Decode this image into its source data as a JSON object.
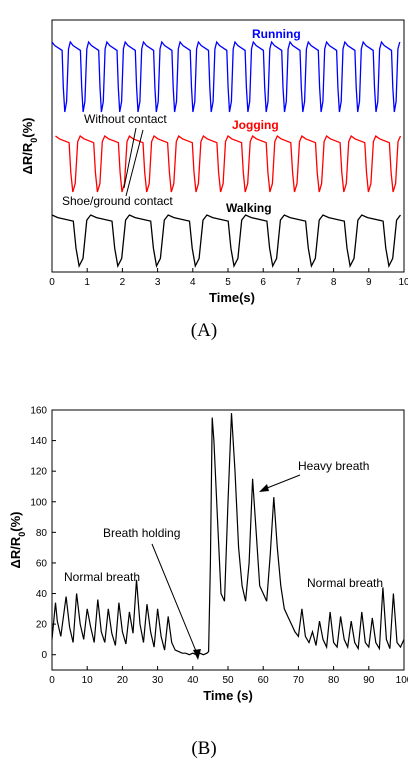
{
  "panel_labels": {
    "a": "(A)",
    "b": "(B)"
  },
  "chart_data": [
    {
      "type": "line",
      "title": "",
      "xlabel": "Time(s)",
      "ylabel": "ΔR/R0(%)",
      "xlim": [
        0,
        10
      ],
      "xticks": [
        "0",
        "1",
        "2",
        "3",
        "4",
        "5",
        "6",
        "7",
        "8",
        "9",
        "10"
      ],
      "yticks": [],
      "series": [
        {
          "name": "Running",
          "color": "#0000ff",
          "period": 0.52,
          "start": 0.0,
          "cycles": 19
        },
        {
          "name": "Jogging",
          "color": "#ff0000",
          "period": 0.7,
          "start": 0.1,
          "cycles": 15
        },
        {
          "name": "Walking",
          "color": "#000000",
          "period": 1.1,
          "start": 0.0,
          "cycles": 10
        }
      ],
      "annotations": [
        "Without contact",
        "Shoe/ground contact"
      ]
    },
    {
      "type": "line",
      "title": "",
      "xlabel": "Time (s)",
      "ylabel": "ΔR/R0(%)",
      "xlim": [
        0,
        100
      ],
      "ylim": [
        -10,
        160
      ],
      "xticks": [
        "0",
        "10",
        "20",
        "30",
        "40",
        "50",
        "60",
        "70",
        "80",
        "90",
        "100"
      ],
      "yticks": [
        "0",
        "20",
        "40",
        "60",
        "80",
        "100",
        "120",
        "140",
        "160"
      ],
      "series": [
        {
          "name": "",
          "color": "#000000",
          "points": [
            [
              0,
              10
            ],
            [
              1,
              34
            ],
            [
              1.5,
              22
            ],
            [
              2.5,
              12
            ],
            [
              4,
              38
            ],
            [
              5,
              18
            ],
            [
              6,
              8
            ],
            [
              7,
              40
            ],
            [
              8,
              20
            ],
            [
              9,
              10
            ],
            [
              10,
              30
            ],
            [
              11,
              18
            ],
            [
              12,
              8
            ],
            [
              13,
              36
            ],
            [
              14,
              15
            ],
            [
              15,
              8
            ],
            [
              16,
              30
            ],
            [
              17,
              14
            ],
            [
              18,
              6
            ],
            [
              19,
              34
            ],
            [
              20,
              15
            ],
            [
              21,
              7
            ],
            [
              22,
              28
            ],
            [
              23,
              14
            ],
            [
              24,
              49
            ],
            [
              25,
              20
            ],
            [
              26,
              8
            ],
            [
              27,
              33
            ],
            [
              28,
              15
            ],
            [
              29,
              5
            ],
            [
              30,
              30
            ],
            [
              31,
              12
            ],
            [
              32,
              3
            ],
            [
              33,
              25
            ],
            [
              34,
              8
            ],
            [
              35,
              3
            ],
            [
              36,
              2
            ],
            [
              37,
              1
            ],
            [
              38,
              1
            ],
            [
              39,
              0
            ],
            [
              40,
              1
            ],
            [
              41,
              0
            ],
            [
              42,
              1
            ],
            [
              43,
              0
            ],
            [
              44,
              1
            ],
            [
              44.5,
              2
            ],
            [
              45,
              60
            ],
            [
              45.5,
              155
            ],
            [
              46,
              140
            ],
            [
              47,
              90
            ],
            [
              48,
              40
            ],
            [
              49,
              35
            ],
            [
              50,
              100
            ],
            [
              51,
              158
            ],
            [
              52,
              120
            ],
            [
              53,
              70
            ],
            [
              54,
              45
            ],
            [
              55,
              35
            ],
            [
              56,
              60
            ],
            [
              57,
              115
            ],
            [
              58,
              80
            ],
            [
              59,
              45
            ],
            [
              60,
              40
            ],
            [
              61,
              35
            ],
            [
              62,
              65
            ],
            [
              63,
              103
            ],
            [
              64,
              70
            ],
            [
              65,
              45
            ],
            [
              66,
              30
            ],
            [
              67,
              25
            ],
            [
              68,
              20
            ],
            [
              69,
              15
            ],
            [
              70,
              12
            ],
            [
              71,
              30
            ],
            [
              72,
              12
            ],
            [
              73,
              8
            ],
            [
              74,
              15
            ],
            [
              75,
              6
            ],
            [
              76,
              22
            ],
            [
              77,
              10
            ],
            [
              78,
              5
            ],
            [
              79,
              28
            ],
            [
              80,
              8
            ],
            [
              81,
              5
            ],
            [
              82,
              25
            ],
            [
              83,
              10
            ],
            [
              84,
              5
            ],
            [
              85,
              22
            ],
            [
              86,
              8
            ],
            [
              87,
              4
            ],
            [
              88,
              28
            ],
            [
              89,
              8
            ],
            [
              90,
              5
            ],
            [
              91,
              24
            ],
            [
              92,
              8
            ],
            [
              93,
              4
            ],
            [
              94,
              44
            ],
            [
              95,
              10
            ],
            [
              96,
              4
            ],
            [
              97,
              40
            ],
            [
              98,
              8
            ],
            [
              99,
              5
            ],
            [
              100,
              10
            ]
          ]
        }
      ],
      "annotations": [
        "Normal breath",
        "Breath holding",
        "Heavy breath",
        "Normal breath"
      ]
    }
  ]
}
